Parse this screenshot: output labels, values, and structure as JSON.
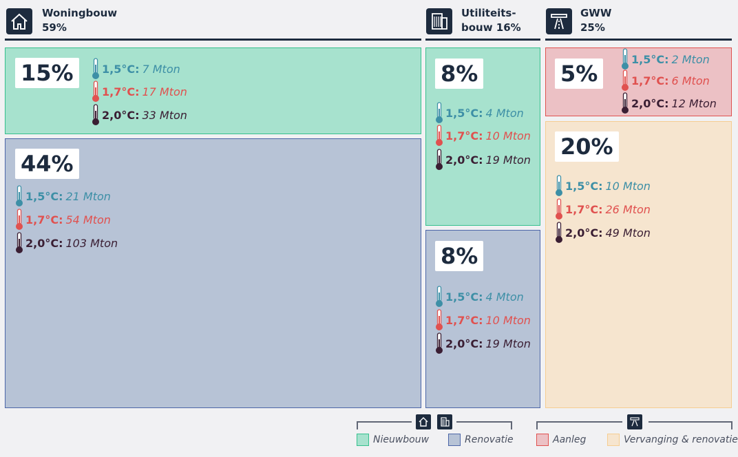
{
  "colors": {
    "nieuwbouw_fill": "#a7e2ce",
    "nieuwbouw_border": "#35c08d",
    "renovatie_fill": "#b7c3d6",
    "renovatie_border": "#4c66a8",
    "aanleg_fill": "#ecc1c5",
    "aanleg_border": "#e0514f",
    "vervanging_fill": "#f6e5cf",
    "vervanging_border": "#f6cd91",
    "scen_15": "#3d8fa6",
    "scen_17": "#e0514f",
    "scen_20": "#3a1e33",
    "dark": "#1d2b3e"
  },
  "headers": {
    "woningbouw": {
      "line1": "Woningbouw",
      "line2": "59%",
      "icon": "house-icon"
    },
    "utiliteitsbouw": {
      "line1": "Utiliteits-",
      "line2": "bouw 16%",
      "icon": "office-building-icon"
    },
    "gww": {
      "line1": "GWW",
      "line2": "25%",
      "icon": "road-bridge-icon"
    }
  },
  "scenario_labels": {
    "s15": "1,5°C:",
    "s17": "1,7°C:",
    "s20": "2,0°C:"
  },
  "chart_data": {
    "type": "treemap",
    "unit": "Mton",
    "groups": [
      {
        "name": "Woningbouw",
        "share": "59%",
        "children": [
          {
            "category": "Nieuwbouw",
            "share": "15%",
            "s15": "7 Mton",
            "s17": "17 Mton",
            "s20": "33 Mton"
          },
          {
            "category": "Renovatie",
            "share": "44%",
            "s15": "21 Mton",
            "s17": "54 Mton",
            "s20": "103 Mton"
          }
        ]
      },
      {
        "name": "Utiliteitsbouw",
        "share": "16%",
        "children": [
          {
            "category": "Nieuwbouw",
            "share": "8%",
            "s15": "4 Mton",
            "s17": "10 Mton",
            "s20": "19 Mton"
          },
          {
            "category": "Renovatie",
            "share": "8%",
            "s15": "4 Mton",
            "s17": "10 Mton",
            "s20": "19 Mton"
          }
        ]
      },
      {
        "name": "GWW",
        "share": "25%",
        "children": [
          {
            "category": "Aanleg",
            "share": "5%",
            "s15": "2 Mton",
            "s17": "6 Mton",
            "s20": "12 Mton"
          },
          {
            "category": "Vervanging & renovatie",
            "share": "20%",
            "s15": "10 Mton",
            "s17": "26 Mton",
            "s20": "49 Mton"
          }
        ]
      }
    ]
  },
  "legend": {
    "nieuwbouw": "Nieuwbouw",
    "renovatie": "Renovatie",
    "aanleg": "Aanleg",
    "vervanging": "Vervanging & renovatie"
  }
}
